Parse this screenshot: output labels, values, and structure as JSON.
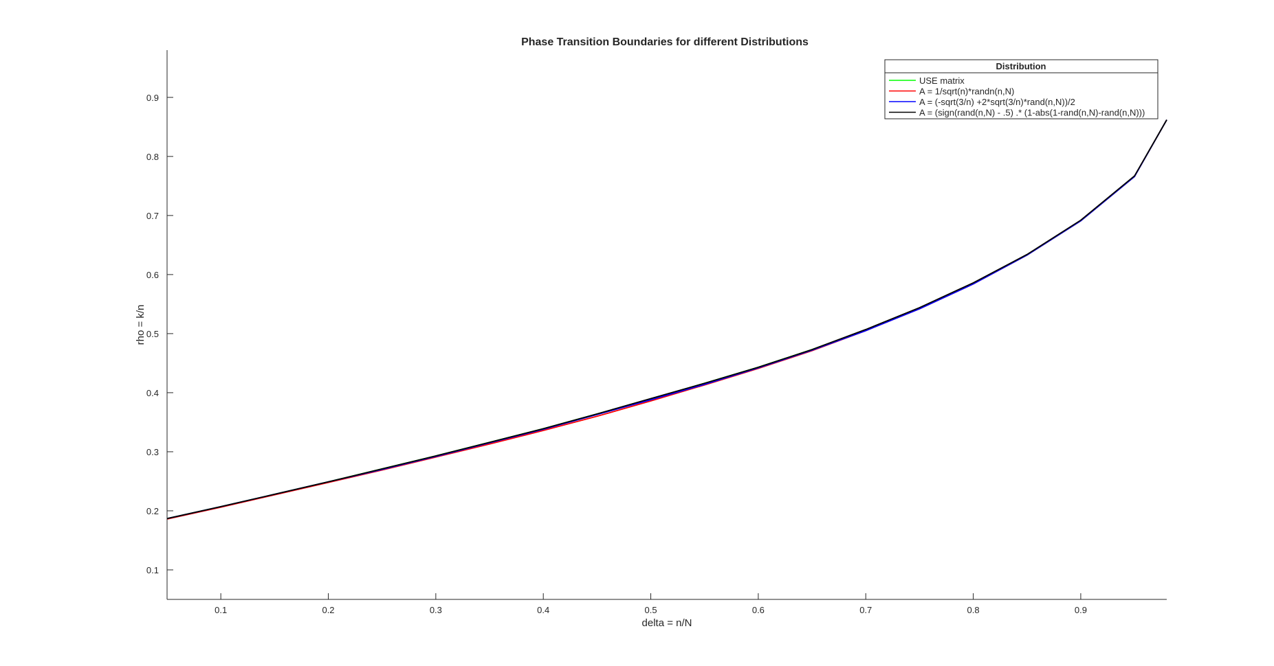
{
  "chart_data": {
    "type": "line",
    "title": "Phase Transition Boundaries for different Distributions",
    "xlabel": "delta = n/N",
    "ylabel": "rho = k/n",
    "xlim": [
      0.05,
      0.98
    ],
    "ylim": [
      0.05,
      0.98
    ],
    "xticks": [
      0.1,
      0.2,
      0.3,
      0.4,
      0.5,
      0.6,
      0.7,
      0.8,
      0.9
    ],
    "yticks": [
      0.1,
      0.2,
      0.3,
      0.4,
      0.5,
      0.6,
      0.7,
      0.8,
      0.9
    ],
    "grid": false,
    "legend": {
      "title": "Distribution",
      "location": "top-right"
    },
    "x": [
      0.05,
      0.1,
      0.15,
      0.2,
      0.25,
      0.3,
      0.35,
      0.4,
      0.45,
      0.5,
      0.55,
      0.6,
      0.65,
      0.7,
      0.75,
      0.8,
      0.85,
      0.9,
      0.95,
      0.98
    ],
    "series": [
      {
        "name": "USE matrix",
        "color": "#00ff00",
        "values": [
          0.187,
          0.207,
          0.228,
          0.249,
          0.271,
          0.293,
          0.316,
          0.339,
          0.364,
          0.389,
          0.416,
          0.443,
          0.473,
          0.506,
          0.543,
          0.585,
          0.633,
          0.691,
          0.766,
          0.862
        ]
      },
      {
        "name": "A  = 1/sqrt(n)*randn(n,N)",
        "color": "#ff0000",
        "values": [
          0.186,
          0.206,
          0.227,
          0.248,
          0.269,
          0.291,
          0.313,
          0.336,
          0.36,
          0.386,
          0.413,
          0.441,
          0.471,
          0.505,
          0.542,
          0.584,
          0.633,
          0.691,
          0.766,
          0.862
        ]
      },
      {
        "name": "A = (-sqrt(3/n) +2*sqrt(3/n)*rand(n,N))/2",
        "color": "#0000ff",
        "values": [
          0.187,
          0.207,
          0.228,
          0.249,
          0.27,
          0.292,
          0.315,
          0.338,
          0.363,
          0.388,
          0.414,
          0.442,
          0.472,
          0.505,
          0.542,
          0.584,
          0.633,
          0.691,
          0.766,
          0.862
        ]
      },
      {
        "name": "A = (sign(rand(n,N) - .5) .* (1-abs(1-rand(n,N)-rand(n,N)))",
        "color": "#000000",
        "values": [
          0.187,
          0.207,
          0.228,
          0.249,
          0.271,
          0.293,
          0.316,
          0.339,
          0.364,
          0.39,
          0.416,
          0.443,
          0.473,
          0.507,
          0.544,
          0.586,
          0.634,
          0.692,
          0.767,
          0.862
        ]
      }
    ]
  }
}
